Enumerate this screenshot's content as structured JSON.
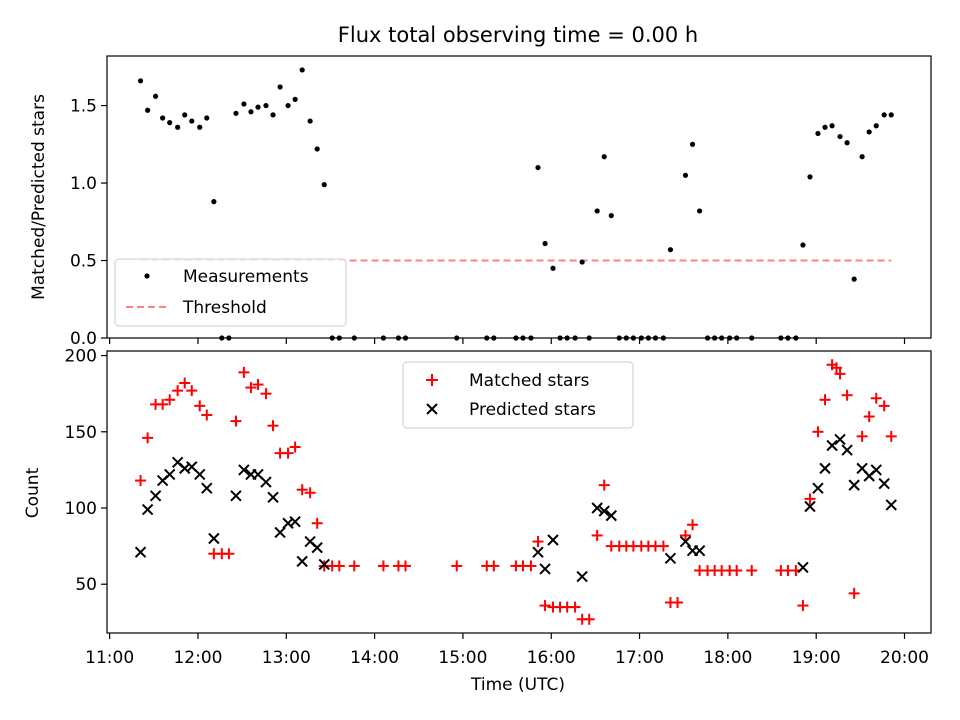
{
  "chart_data": [
    {
      "type": "scatter",
      "title": "Flux total observing time = 0.00 h",
      "xlabel": "",
      "ylabel": "Matched/Predicted stars",
      "x_unit": "hours",
      "xlim": [
        10.97,
        20.3
      ],
      "ylim": [
        0,
        1.82
      ],
      "yticks": [
        0.0,
        0.5,
        1.0,
        1.5
      ],
      "ytick_labels": [
        "0.0",
        "0.5",
        "1.0",
        "1.5"
      ],
      "grid": false,
      "legend_position": "lower-left",
      "series": [
        {
          "name": "Measurements",
          "marker": "dot",
          "color": "#000000",
          "points": [
            [
              11.35,
              1.66
            ],
            [
              11.43,
              1.47
            ],
            [
              11.52,
              1.56
            ],
            [
              11.6,
              1.42
            ],
            [
              11.68,
              1.39
            ],
            [
              11.77,
              1.36
            ],
            [
              11.85,
              1.44
            ],
            [
              11.93,
              1.4
            ],
            [
              12.02,
              1.36
            ],
            [
              12.1,
              1.42
            ],
            [
              12.18,
              0.88
            ],
            [
              12.27,
              0.0
            ],
            [
              12.35,
              0.0
            ],
            [
              12.43,
              1.45
            ],
            [
              12.52,
              1.51
            ],
            [
              12.6,
              1.46
            ],
            [
              12.68,
              1.49
            ],
            [
              12.77,
              1.5
            ],
            [
              12.85,
              1.44
            ],
            [
              12.93,
              1.62
            ],
            [
              13.02,
              1.5
            ],
            [
              13.1,
              1.54
            ],
            [
              13.18,
              1.73
            ],
            [
              13.27,
              1.4
            ],
            [
              13.35,
              1.22
            ],
            [
              13.43,
              0.99
            ],
            [
              13.52,
              0.0
            ],
            [
              13.6,
              0.0
            ],
            [
              13.77,
              0.0
            ],
            [
              14.1,
              0.0
            ],
            [
              14.27,
              0.0
            ],
            [
              14.35,
              0.0
            ],
            [
              14.93,
              0.0
            ],
            [
              15.27,
              0.0
            ],
            [
              15.35,
              0.0
            ],
            [
              15.6,
              0.0
            ],
            [
              15.68,
              0.0
            ],
            [
              15.77,
              0.0
            ],
            [
              15.85,
              1.1
            ],
            [
              15.93,
              0.61
            ],
            [
              16.02,
              0.45
            ],
            [
              16.1,
              0.0
            ],
            [
              16.18,
              0.0
            ],
            [
              16.27,
              0.0
            ],
            [
              16.35,
              0.49
            ],
            [
              16.43,
              0.0
            ],
            [
              16.52,
              0.82
            ],
            [
              16.6,
              1.17
            ],
            [
              16.68,
              0.79
            ],
            [
              16.77,
              0.0
            ],
            [
              16.85,
              0.0
            ],
            [
              16.93,
              0.0
            ],
            [
              17.02,
              0.0
            ],
            [
              17.1,
              0.0
            ],
            [
              17.18,
              0.0
            ],
            [
              17.27,
              0.0
            ],
            [
              17.35,
              0.57
            ],
            [
              17.52,
              1.05
            ],
            [
              17.6,
              1.25
            ],
            [
              17.68,
              0.82
            ],
            [
              17.77,
              0.0
            ],
            [
              17.85,
              0.0
            ],
            [
              17.93,
              0.0
            ],
            [
              18.02,
              0.0
            ],
            [
              18.1,
              0.0
            ],
            [
              18.27,
              0.0
            ],
            [
              18.6,
              0.0
            ],
            [
              18.68,
              0.0
            ],
            [
              18.77,
              0.0
            ],
            [
              18.85,
              0.6
            ],
            [
              18.93,
              1.04
            ],
            [
              19.02,
              1.32
            ],
            [
              19.1,
              1.36
            ],
            [
              19.18,
              1.37
            ],
            [
              19.27,
              1.3
            ],
            [
              19.35,
              1.26
            ],
            [
              19.43,
              0.38
            ],
            [
              19.52,
              1.17
            ],
            [
              19.6,
              1.33
            ],
            [
              19.68,
              1.37
            ],
            [
              19.77,
              1.44
            ],
            [
              19.85,
              1.44
            ]
          ]
        },
        {
          "name": "Threshold",
          "style": "dashed",
          "color": "#ff8080",
          "x": [
            11.35,
            19.85
          ],
          "y": [
            0.5,
            0.5
          ]
        }
      ]
    },
    {
      "type": "scatter",
      "title": "",
      "xlabel": "Time (UTC)",
      "ylabel": "Count",
      "x_unit": "hours",
      "xlim": [
        10.97,
        20.3
      ],
      "ylim": [
        18,
        203
      ],
      "yticks": [
        50,
        100,
        150,
        200
      ],
      "ytick_labels": [
        "50",
        "100",
        "150",
        "200"
      ],
      "xticks": [
        11,
        12,
        13,
        14,
        15,
        16,
        17,
        18,
        19,
        20
      ],
      "xtick_labels": [
        "11:00",
        "12:00",
        "13:00",
        "14:00",
        "15:00",
        "16:00",
        "17:00",
        "18:00",
        "19:00",
        "20:00"
      ],
      "grid": false,
      "legend_position": "top-center",
      "series": [
        {
          "name": "Matched stars",
          "marker": "plus",
          "color": "#ff0000",
          "points": [
            [
              11.35,
              118
            ],
            [
              11.43,
              146
            ],
            [
              11.52,
              168
            ],
            [
              11.6,
              168
            ],
            [
              11.68,
              171
            ],
            [
              11.77,
              177
            ],
            [
              11.85,
              182
            ],
            [
              11.93,
              177
            ],
            [
              12.02,
              167
            ],
            [
              12.1,
              161
            ],
            [
              12.18,
              70
            ],
            [
              12.27,
              70
            ],
            [
              12.35,
              70
            ],
            [
              12.43,
              157
            ],
            [
              12.52,
              189
            ],
            [
              12.6,
              179
            ],
            [
              12.68,
              181
            ],
            [
              12.77,
              175
            ],
            [
              12.85,
              154
            ],
            [
              12.93,
              136
            ],
            [
              13.02,
              136
            ],
            [
              13.1,
              140
            ],
            [
              13.18,
              112
            ],
            [
              13.27,
              110
            ],
            [
              13.35,
              90
            ],
            [
              13.43,
              62
            ],
            [
              13.52,
              62
            ],
            [
              13.6,
              62
            ],
            [
              13.77,
              62
            ],
            [
              14.1,
              62
            ],
            [
              14.27,
              62
            ],
            [
              14.35,
              62
            ],
            [
              14.93,
              62
            ],
            [
              15.27,
              62
            ],
            [
              15.35,
              62
            ],
            [
              15.6,
              62
            ],
            [
              15.68,
              62
            ],
            [
              15.77,
              62
            ],
            [
              15.85,
              78
            ],
            [
              15.93,
              36
            ],
            [
              16.02,
              35
            ],
            [
              16.1,
              35
            ],
            [
              16.18,
              35
            ],
            [
              16.27,
              35
            ],
            [
              16.35,
              27
            ],
            [
              16.43,
              27
            ],
            [
              16.52,
              82
            ],
            [
              16.6,
              115
            ],
            [
              16.68,
              75
            ],
            [
              16.77,
              75
            ],
            [
              16.85,
              75
            ],
            [
              16.93,
              75
            ],
            [
              17.02,
              75
            ],
            [
              17.1,
              75
            ],
            [
              17.18,
              75
            ],
            [
              17.27,
              75
            ],
            [
              17.35,
              38
            ],
            [
              17.43,
              38
            ],
            [
              17.52,
              82
            ],
            [
              17.6,
              89
            ],
            [
              17.68,
              59
            ],
            [
              17.77,
              59
            ],
            [
              17.85,
              59
            ],
            [
              17.93,
              59
            ],
            [
              18.02,
              59
            ],
            [
              18.1,
              59
            ],
            [
              18.27,
              59
            ],
            [
              18.6,
              59
            ],
            [
              18.68,
              59
            ],
            [
              18.77,
              59
            ],
            [
              18.85,
              36
            ],
            [
              18.93,
              106
            ],
            [
              19.02,
              150
            ],
            [
              19.1,
              171
            ],
            [
              19.18,
              194
            ],
            [
              19.23,
              192
            ],
            [
              19.27,
              188
            ],
            [
              19.35,
              174
            ],
            [
              19.43,
              44
            ],
            [
              19.52,
              147
            ],
            [
              19.6,
              160
            ],
            [
              19.68,
              172
            ],
            [
              19.77,
              167
            ],
            [
              19.85,
              147
            ]
          ]
        },
        {
          "name": "Predicted stars",
          "marker": "x",
          "color": "#000000",
          "points": [
            [
              11.35,
              71
            ],
            [
              11.43,
              99
            ],
            [
              11.52,
              108
            ],
            [
              11.6,
              118
            ],
            [
              11.68,
              122
            ],
            [
              11.77,
              130
            ],
            [
              11.85,
              126
            ],
            [
              11.93,
              127
            ],
            [
              12.02,
              122
            ],
            [
              12.1,
              113
            ],
            [
              12.18,
              80
            ],
            [
              12.43,
              108
            ],
            [
              12.52,
              125
            ],
            [
              12.6,
              122
            ],
            [
              12.68,
              122
            ],
            [
              12.77,
              117
            ],
            [
              12.85,
              107
            ],
            [
              12.93,
              84
            ],
            [
              13.02,
              90
            ],
            [
              13.1,
              91
            ],
            [
              13.18,
              65
            ],
            [
              13.27,
              78
            ],
            [
              13.35,
              74
            ],
            [
              13.43,
              63
            ],
            [
              15.85,
              71
            ],
            [
              15.93,
              60
            ],
            [
              16.02,
              79
            ],
            [
              16.35,
              55
            ],
            [
              16.52,
              100
            ],
            [
              16.6,
              98
            ],
            [
              16.68,
              95
            ],
            [
              17.35,
              67
            ],
            [
              17.52,
              78
            ],
            [
              17.6,
              72
            ],
            [
              17.68,
              72
            ],
            [
              18.85,
              61
            ],
            [
              18.93,
              101
            ],
            [
              19.02,
              113
            ],
            [
              19.1,
              126
            ],
            [
              19.18,
              141
            ],
            [
              19.27,
              145
            ],
            [
              19.35,
              138
            ],
            [
              19.43,
              115
            ],
            [
              19.52,
              126
            ],
            [
              19.6,
              121
            ],
            [
              19.68,
              125
            ],
            [
              19.77,
              116
            ],
            [
              19.85,
              102
            ]
          ]
        }
      ]
    }
  ]
}
